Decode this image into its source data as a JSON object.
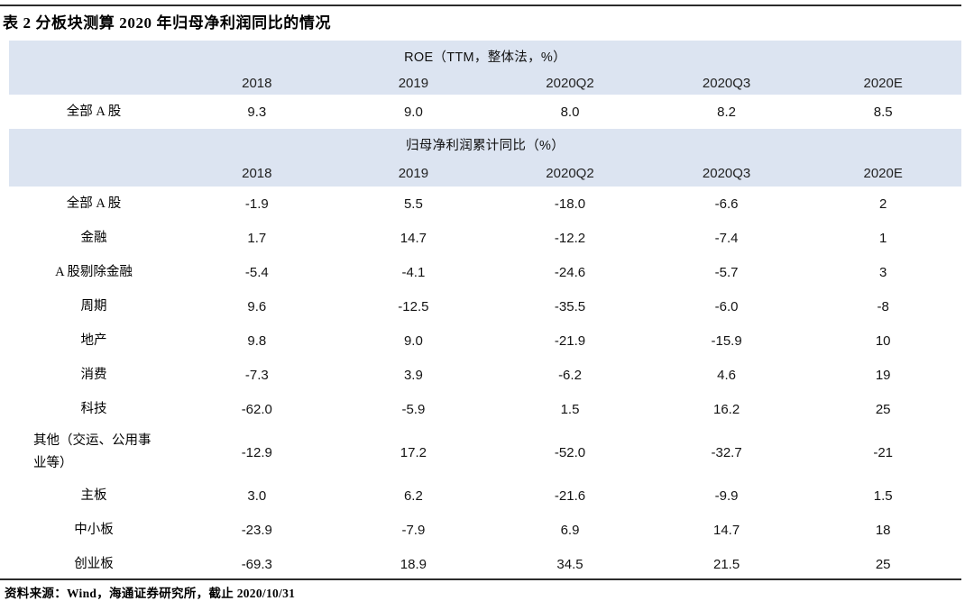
{
  "title": "表 2 分板块测算 2020 年归母净利润同比的情况",
  "source": "资料来源：Wind，海通证券研究所，截止 2020/10/31",
  "colors": {
    "header_band": "#dce4f1",
    "rule": "#2b2b2b",
    "background": "#ffffff"
  },
  "sections": [
    {
      "header": "ROE（TTM，整体法，%）",
      "years": [
        "2018",
        "2019",
        "2020Q2",
        "2020Q3",
        "2020E"
      ],
      "rows": [
        {
          "label": "全部 A 股",
          "values": [
            "9.3",
            "9.0",
            "8.0",
            "8.2",
            "8.5"
          ]
        }
      ]
    },
    {
      "header": "归母净利润累计同比（%）",
      "years": [
        "2018",
        "2019",
        "2020Q2",
        "2020Q3",
        "2020E"
      ],
      "rows": [
        {
          "label": "全部 A 股",
          "values": [
            "-1.9",
            "5.5",
            "-18.0",
            "-6.6",
            "2"
          ]
        },
        {
          "label": "金融",
          "values": [
            "1.7",
            "14.7",
            "-12.2",
            "-7.4",
            "1"
          ]
        },
        {
          "label": "A 股剔除金融",
          "values": [
            "-5.4",
            "-4.1",
            "-24.6",
            "-5.7",
            "3"
          ]
        },
        {
          "label": "周期",
          "values": [
            "9.6",
            "-12.5",
            "-35.5",
            "-6.0",
            "-8"
          ]
        },
        {
          "label": "地产",
          "values": [
            "9.8",
            "9.0",
            "-21.9",
            "-15.9",
            "10"
          ]
        },
        {
          "label": "消费",
          "values": [
            "-7.3",
            "3.9",
            "-6.2",
            "4.6",
            "19"
          ]
        },
        {
          "label": "科技",
          "values": [
            "-62.0",
            "-5.9",
            "1.5",
            "16.2",
            "25"
          ]
        },
        {
          "label": "其他（交运、公用事业等）",
          "values": [
            "-12.9",
            "17.2",
            "-52.0",
            "-32.7",
            "-21"
          ]
        },
        {
          "label": "主板",
          "values": [
            "3.0",
            "6.2",
            "-21.6",
            "-9.9",
            "1.5"
          ]
        },
        {
          "label": "中小板",
          "values": [
            "-23.9",
            "-7.9",
            "6.9",
            "14.7",
            "18"
          ]
        },
        {
          "label": "创业板",
          "values": [
            "-69.3",
            "18.9",
            "34.5",
            "21.5",
            "25"
          ]
        }
      ]
    }
  ]
}
